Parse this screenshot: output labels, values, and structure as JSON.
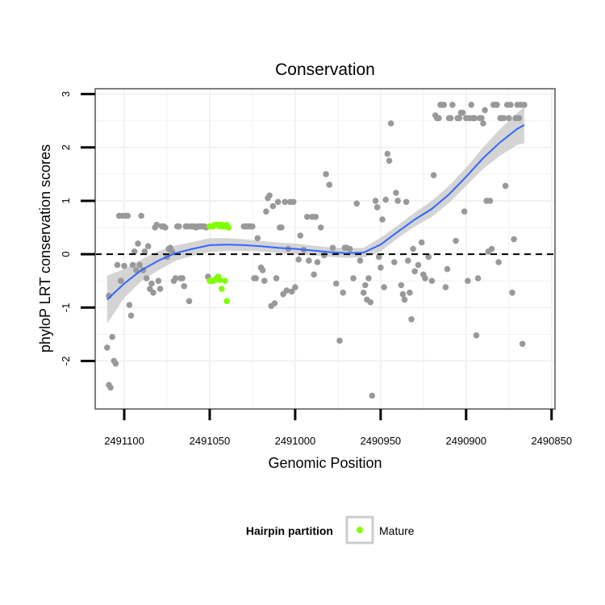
{
  "chart_data": {
    "type": "scatter",
    "title": "Conservation",
    "xlabel": "Genomic Position",
    "ylabel": "phyloP LRT conservation scores",
    "x_reversed": true,
    "xlim": [
      2491117,
      2490848
    ],
    "ylim": [
      -2.9,
      3.1
    ],
    "x_ticks": [
      2491100,
      2491050,
      2491000,
      2490950,
      2490900,
      2490850
    ],
    "x_tick_labels": [
      "2491100",
      "2491050",
      "2491000",
      "2490950",
      "2490900",
      "2490850"
    ],
    "y_ticks": [
      -2,
      -1,
      0,
      1,
      2,
      3
    ],
    "y_tick_labels": [
      "-2",
      "-1",
      "0",
      "1",
      "2",
      "3"
    ],
    "reference_line": {
      "y": 0,
      "style": "dashed"
    },
    "legend": {
      "title": "Hairpin partition",
      "position": "bottom",
      "entries": [
        {
          "label": "Mature",
          "color": "#7fff00"
        }
      ]
    },
    "colors": {
      "other_points": "#999999",
      "mature_points": "#7fff00",
      "smooth_line": "#3366ff",
      "ribbon": "#cccccc",
      "panel_border": "#7f7f7f",
      "grid": "#f2f2f2"
    },
    "series": [
      {
        "name": "Other",
        "points": [
          [
            2491110,
            -1.75
          ],
          [
            2491109,
            -2.45
          ],
          [
            2491108,
            -2.5
          ],
          [
            2491107,
            -1.55
          ],
          [
            2491106,
            -2.0
          ],
          [
            2491105,
            -2.05
          ],
          [
            2491109,
            -0.78
          ],
          [
            2491104,
            -0.2
          ],
          [
            2491103,
            0.72
          ],
          [
            2491102,
            -0.5
          ],
          [
            2491101,
            0.72
          ],
          [
            2491100,
            -0.22
          ],
          [
            2491099,
            0.72
          ],
          [
            2491098,
            0.72
          ],
          [
            2491097,
            -0.95
          ],
          [
            2491096,
            -1.15
          ],
          [
            2491095,
            -0.2
          ],
          [
            2491094,
            0.05
          ],
          [
            2491093,
            -0.3
          ],
          [
            2491092,
            0.2
          ],
          [
            2491091,
            -0.2
          ],
          [
            2491090,
            0.72
          ],
          [
            2491089,
            -0.3
          ],
          [
            2491088,
            0.05
          ],
          [
            2491087,
            -0.45
          ],
          [
            2491086,
            0.15
          ],
          [
            2491085,
            -0.65
          ],
          [
            2491084,
            -0.55
          ],
          [
            2491083,
            -0.72
          ],
          [
            2491082,
            0.5
          ],
          [
            2491081,
            0.55
          ],
          [
            2491080,
            -0.5
          ],
          [
            2491079,
            -0.65
          ],
          [
            2491078,
            0.52
          ],
          [
            2491077,
            0.52
          ],
          [
            2491076,
            0.5
          ],
          [
            2491075,
            -0.05
          ],
          [
            2491074,
            0.1
          ],
          [
            2491073,
            0.12
          ],
          [
            2491072,
            0.05
          ],
          [
            2491071,
            -0.5
          ],
          [
            2491070,
            -0.45
          ],
          [
            2491069,
            0.52
          ],
          [
            2491068,
            0.52
          ],
          [
            2491067,
            -0.45
          ],
          [
            2491066,
            -0.45
          ],
          [
            2491065,
            -0.6
          ],
          [
            2491064,
            0.52
          ],
          [
            2491063,
            0.52
          ],
          [
            2491062,
            -0.88
          ],
          [
            2491061,
            0.52
          ],
          [
            2491060,
            0.52
          ],
          [
            2491059,
            0.52
          ],
          [
            2491058,
            0.5
          ],
          [
            2491057,
            0.52
          ],
          [
            2491056,
            0.52
          ],
          [
            2491055,
            0.52
          ],
          [
            2491054,
            0.52
          ],
          [
            2491053,
            0.52
          ],
          [
            2491052,
            0.5
          ],
          [
            2491051,
            -0.42
          ],
          [
            2491030,
            0.52
          ],
          [
            2491029,
            0.52
          ],
          [
            2491028,
            0.52
          ],
          [
            2491027,
            0.52
          ],
          [
            2491026,
            0.52
          ],
          [
            2491025,
            0.52
          ],
          [
            2491024,
            -0.45
          ],
          [
            2491023,
            -0.45
          ],
          [
            2491022,
            0.3
          ],
          [
            2491020,
            -0.25
          ],
          [
            2491019,
            -0.3
          ],
          [
            2491018,
            -0.5
          ],
          [
            2491017,
            0.8
          ],
          [
            2491016,
            1.05
          ],
          [
            2491015,
            1.1
          ],
          [
            2491014,
            -0.97
          ],
          [
            2491013,
            0.9
          ],
          [
            2491012,
            -0.92
          ],
          [
            2491011,
            -0.45
          ],
          [
            2491010,
            0.98
          ],
          [
            2491009,
            0.5
          ],
          [
            2491008,
            0.5
          ],
          [
            2491007,
            -0.75
          ],
          [
            2491006,
            0.98
          ],
          [
            2491005,
            -0.68
          ],
          [
            2491004,
            0.1
          ],
          [
            2491003,
            0.98
          ],
          [
            2491002,
            -0.7
          ],
          [
            2491001,
            0.98
          ],
          [
            2491000,
            -0.62
          ],
          [
            2490998,
            -0.1
          ],
          [
            2490997,
            0.35
          ],
          [
            2490995,
            0.08
          ],
          [
            2490993,
            0.7
          ],
          [
            2490992,
            -0.12
          ],
          [
            2490990,
            0.7
          ],
          [
            2490989,
            -0.38
          ],
          [
            2490988,
            0.7
          ],
          [
            2490987,
            -0.15
          ],
          [
            2490985,
            0.5
          ],
          [
            2490983,
            -0.02
          ],
          [
            2490982,
            1.5
          ],
          [
            2490980,
            1.3
          ],
          [
            2490978,
            0.12
          ],
          [
            2490976,
            -0.55
          ],
          [
            2490974,
            -1.62
          ],
          [
            2490972,
            -0.72
          ],
          [
            2490971,
            0.12
          ],
          [
            2490970,
            0.12
          ],
          [
            2490968,
            0.1
          ],
          [
            2490966,
            -0.45
          ],
          [
            2490964,
            0.95
          ],
          [
            2490962,
            -0.12
          ],
          [
            2490960,
            -0.72
          ],
          [
            2490959,
            -0.58
          ],
          [
            2490958,
            -0.85
          ],
          [
            2490957,
            -0.45
          ],
          [
            2490956,
            -0.9
          ],
          [
            2490955,
            -2.65
          ],
          [
            2490953,
            1.0
          ],
          [
            2490952,
            0.88
          ],
          [
            2490951,
            -0.05
          ],
          [
            2490950,
            -0.25
          ],
          [
            2490949,
            0.65
          ],
          [
            2490948,
            -0.62
          ],
          [
            2490947,
            1.02
          ],
          [
            2490946,
            1.88
          ],
          [
            2490945,
            1.75
          ],
          [
            2490944,
            2.45
          ],
          [
            2490942,
            -0.15
          ],
          [
            2490941,
            1.15
          ],
          [
            2490940,
            1.0
          ],
          [
            2490938,
            -0.58
          ],
          [
            2490937,
            -0.75
          ],
          [
            2490936,
            -0.85
          ],
          [
            2490935,
            0.98
          ],
          [
            2490934,
            -0.12
          ],
          [
            2490933,
            -0.72
          ],
          [
            2490932,
            -1.22
          ],
          [
            2490931,
            0.1
          ],
          [
            2490930,
            -0.32
          ],
          [
            2490928,
            -0.2
          ],
          [
            2490926,
            0.22
          ],
          [
            2490925,
            -0.38
          ],
          [
            2490924,
            -0.45
          ],
          [
            2490922,
            -0.05
          ],
          [
            2490920,
            -0.5
          ],
          [
            2490919,
            1.48
          ],
          [
            2490918,
            2.6
          ],
          [
            2490917,
            2.55
          ],
          [
            2490916,
            2.55
          ],
          [
            2490915,
            2.8
          ],
          [
            2490914,
            2.8
          ],
          [
            2490913,
            2.8
          ],
          [
            2490912,
            -0.62
          ],
          [
            2490911,
            -0.28
          ],
          [
            2490910,
            2.55
          ],
          [
            2490909,
            2.55
          ],
          [
            2490908,
            2.8
          ],
          [
            2490906,
            0.25
          ],
          [
            2490905,
            2.55
          ],
          [
            2490904,
            2.55
          ],
          [
            2490903,
            2.65
          ],
          [
            2490902,
            2.65
          ],
          [
            2490901,
            0.8
          ],
          [
            2490900,
            2.55
          ],
          [
            2490899,
            -0.5
          ],
          [
            2490898,
            2.55
          ],
          [
            2490897,
            2.8
          ],
          [
            2490896,
            2.55
          ],
          [
            2490895,
            2.55
          ],
          [
            2490894,
            -1.52
          ],
          [
            2490893,
            -0.45
          ],
          [
            2490892,
            2.55
          ],
          [
            2490891,
            2.55
          ],
          [
            2490890,
            2.45
          ],
          [
            2490889,
            2.7
          ],
          [
            2490888,
            1.0
          ],
          [
            2490887,
            0.05
          ],
          [
            2490886,
            1.0
          ],
          [
            2490885,
            0.1
          ],
          [
            2490884,
            2.8
          ],
          [
            2490883,
            2.8
          ],
          [
            2490882,
            2.8
          ],
          [
            2490881,
            -0.15
          ],
          [
            2490880,
            2.55
          ],
          [
            2490879,
            2.55
          ],
          [
            2490878,
            2.55
          ],
          [
            2490877,
            1.28
          ],
          [
            2490876,
            2.8
          ],
          [
            2490875,
            2.55
          ],
          [
            2490874,
            2.8
          ],
          [
            2490873,
            -0.72
          ],
          [
            2490872,
            0.28
          ],
          [
            2490871,
            2.55
          ],
          [
            2490870,
            2.8
          ],
          [
            2490869,
            2.55
          ],
          [
            2490868,
            2.8
          ],
          [
            2490867,
            -1.68
          ],
          [
            2490866,
            2.8
          ]
        ]
      },
      {
        "name": "Mature",
        "points": [
          [
            2491050,
            0.52
          ],
          [
            2491049,
            0.52
          ],
          [
            2491048,
            0.52
          ],
          [
            2491047,
            0.55
          ],
          [
            2491046,
            0.55
          ],
          [
            2491045,
            0.55
          ],
          [
            2491044,
            0.52
          ],
          [
            2491043,
            0.55
          ],
          [
            2491042,
            0.52
          ],
          [
            2491041,
            0.52
          ],
          [
            2491040,
            0.55
          ],
          [
            2491039,
            0.5
          ],
          [
            2491050,
            -0.5
          ],
          [
            2491049,
            -0.5
          ],
          [
            2491048,
            -0.5
          ],
          [
            2491047,
            -0.48
          ],
          [
            2491046,
            -0.45
          ],
          [
            2491045,
            -0.42
          ],
          [
            2491044,
            -0.48
          ],
          [
            2491043,
            -0.65
          ],
          [
            2491041,
            -0.5
          ],
          [
            2491040,
            -0.88
          ]
        ]
      }
    ],
    "smooth": {
      "x": [
        2491110,
        2491100,
        2491090,
        2491080,
        2491070,
        2491060,
        2491050,
        2491040,
        2491030,
        2491020,
        2491010,
        2491000,
        2490990,
        2490980,
        2490970,
        2490960,
        2490950,
        2490940,
        2490930,
        2490920,
        2490910,
        2490900,
        2490890,
        2490880,
        2490870,
        2490866
      ],
      "y": [
        -0.85,
        -0.55,
        -0.3,
        -0.12,
        0.02,
        0.1,
        0.17,
        0.18,
        0.17,
        0.15,
        0.12,
        0.1,
        0.07,
        0.04,
        0.02,
        0.03,
        0.18,
        0.42,
        0.65,
        0.85,
        1.12,
        1.45,
        1.8,
        2.1,
        2.35,
        2.42
      ],
      "lower": [
        -1.3,
        -0.82,
        -0.5,
        -0.3,
        -0.12,
        -0.03,
        0.04,
        0.06,
        0.06,
        0.05,
        0.02,
        0.0,
        -0.02,
        -0.05,
        -0.07,
        -0.06,
        0.05,
        0.3,
        0.52,
        0.7,
        0.96,
        1.28,
        1.6,
        1.85,
        2.05,
        2.08
      ],
      "upper": [
        -0.4,
        -0.28,
        -0.1,
        0.06,
        0.16,
        0.23,
        0.3,
        0.3,
        0.28,
        0.25,
        0.22,
        0.2,
        0.16,
        0.13,
        0.11,
        0.12,
        0.31,
        0.54,
        0.78,
        1.0,
        1.28,
        1.62,
        2.0,
        2.35,
        2.65,
        2.76
      ]
    }
  }
}
